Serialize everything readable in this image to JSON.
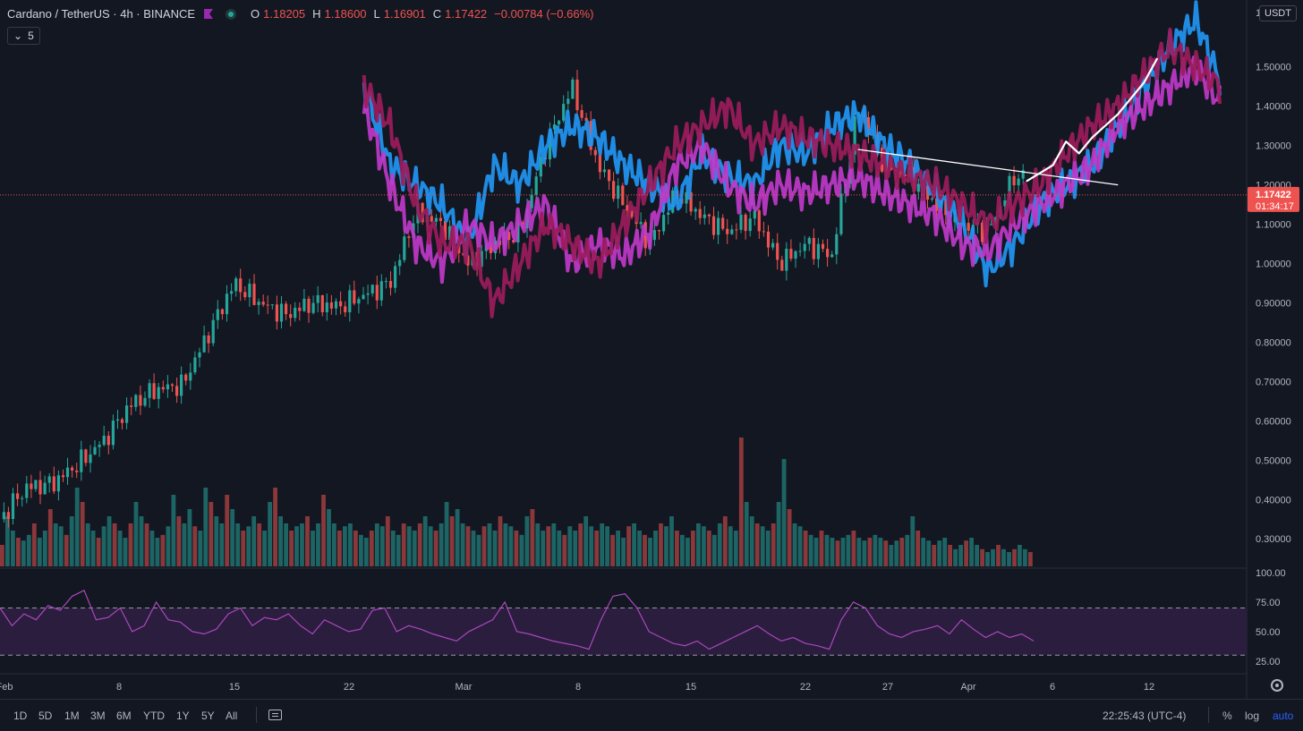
{
  "header": {
    "symbol": "Cardano / TetherUS · 4h · BINANCE",
    "ohlc": [
      {
        "k": "O",
        "v": "1.18205"
      },
      {
        "k": "H",
        "v": "1.18600"
      },
      {
        "k": "L",
        "v": "1.16901"
      },
      {
        "k": "C",
        "v": "1.17422"
      }
    ],
    "change": "−0.00784 (−0.66%)",
    "studies_count": "5",
    "currency": "USDT"
  },
  "colors": {
    "background": "#131722",
    "up": "#26a69a",
    "down": "#ef5350",
    "overlay_blue": "#2196f3",
    "overlay_magenta": "#c039c9",
    "overlay_crimson": "#9c1c5c",
    "rsi_line": "#ab47bc",
    "rsi_band": "#2a1d3e"
  },
  "chart_data": [
    {
      "type": "candlestick",
      "title": "",
      "x_tick_labels": [
        "Feb",
        "8",
        "15",
        "22",
        "Mar",
        "8",
        "15",
        "22",
        "27",
        "Apr",
        "6",
        "12"
      ],
      "y_tick_labels": [
        "1.50000",
        "1.40000",
        "1.30000",
        "1.20000",
        "1.10000",
        "1.00000",
        "0.90000",
        "0.80000",
        "0.70000",
        "0.60000",
        "0.50000",
        "0.40000",
        "0.30000"
      ],
      "y_top_label": "1",
      "ylim": [
        0.23,
        1.67
      ],
      "last_price": {
        "value": 1.17422,
        "label": "1.17422",
        "countdown": "01:34:17"
      },
      "price_series": {
        "name": "ADA/USDT",
        "x": [
          0,
          2,
          4,
          6,
          8,
          10,
          12,
          14,
          16,
          18,
          20,
          22,
          24,
          26,
          28,
          30,
          32,
          34,
          36,
          38,
          40,
          42,
          44,
          46,
          48,
          50,
          52,
          54,
          56,
          58,
          60,
          62,
          64,
          66,
          68,
          70,
          72,
          74,
          76,
          78
        ],
        "close": [
          0.35,
          0.43,
          0.44,
          0.49,
          0.55,
          0.64,
          0.68,
          0.69,
          0.82,
          0.95,
          0.9,
          0.87,
          0.9,
          0.89,
          0.92,
          0.95,
          1.13,
          1.1,
          1.0,
          1.05,
          1.08,
          1.3,
          1.45,
          1.25,
          1.15,
          1.05,
          1.18,
          1.12,
          1.08,
          1.12,
          1.0,
          1.05,
          1.02,
          1.4,
          1.25,
          1.22,
          1.15,
          1.1,
          1.08,
          1.22
        ]
      },
      "overlays": [
        {
          "x": [
            28,
            30,
            32,
            34,
            36,
            38,
            40,
            42,
            44,
            46,
            48,
            50,
            52,
            54,
            56,
            58,
            60,
            62,
            64,
            66,
            68,
            70,
            72,
            74,
            76,
            78,
            80,
            82,
            84,
            86,
            88,
            90,
            92,
            94
          ],
          "y": [
            1.45,
            1.25,
            1.2,
            1.15,
            1.05,
            1.25,
            1.2,
            1.3,
            1.35,
            1.32,
            1.25,
            1.2,
            1.15,
            1.28,
            1.22,
            1.2,
            1.3,
            1.28,
            1.35,
            1.38,
            1.3,
            1.25,
            1.18,
            1.1,
            0.98,
            1.05,
            1.15,
            1.2,
            1.25,
            1.35,
            1.45,
            1.55,
            1.62,
            1.45
          ],
          "color_key": "overlay_blue"
        },
        {
          "x": [
            28,
            30,
            32,
            34,
            36,
            38,
            40,
            42,
            44,
            46,
            48,
            50,
            52,
            54,
            56,
            58,
            60,
            62,
            64,
            66,
            68,
            70,
            72,
            74,
            76,
            78,
            80,
            82,
            84,
            86,
            88,
            90,
            92,
            94
          ],
          "y": [
            1.4,
            1.2,
            1.05,
            1.0,
            1.1,
            1.05,
            1.1,
            1.15,
            1.0,
            1.05,
            1.02,
            1.08,
            1.25,
            1.3,
            1.2,
            1.15,
            1.2,
            1.18,
            1.2,
            1.22,
            1.18,
            1.15,
            1.12,
            1.05,
            1.03,
            1.1,
            1.15,
            1.2,
            1.25,
            1.35,
            1.4,
            1.45,
            1.5,
            1.4
          ],
          "color_key": "overlay_magenta"
        },
        {
          "x": [
            28,
            30,
            32,
            34,
            36,
            38,
            40,
            42,
            44,
            46,
            48,
            50,
            52,
            54,
            56,
            58,
            60,
            62,
            64,
            66,
            68,
            70,
            72,
            74,
            76,
            78,
            80,
            82,
            84,
            86,
            88,
            90,
            92,
            94
          ],
          "y": [
            1.45,
            1.35,
            1.15,
            1.05,
            1.05,
            0.9,
            1.0,
            1.1,
            1.05,
            1.0,
            1.1,
            1.2,
            1.3,
            1.35,
            1.4,
            1.3,
            1.35,
            1.32,
            1.3,
            1.28,
            1.25,
            1.22,
            1.2,
            1.15,
            1.1,
            1.15,
            1.2,
            1.28,
            1.35,
            1.4,
            1.48,
            1.55,
            1.5,
            1.45
          ],
          "color_key": "overlay_crimson"
        }
      ],
      "trendline": {
        "x": [
          66,
          86
        ],
        "y": [
          1.29,
          1.2
        ]
      },
      "projection_curve": {
        "x": [
          79,
          81,
          82,
          83,
          84,
          86,
          88,
          89
        ],
        "y": [
          1.21,
          1.25,
          1.31,
          1.28,
          1.32,
          1.38,
          1.46,
          1.52
        ]
      },
      "volume_bars": [
        0.15,
        0.35,
        0.25,
        0.2,
        0.18,
        0.22,
        0.3,
        0.2,
        0.25,
        0.4,
        0.3,
        0.28,
        0.22,
        0.35,
        0.55,
        0.45,
        0.3,
        0.25,
        0.2,
        0.28,
        0.35,
        0.3,
        0.25,
        0.2,
        0.3,
        0.45,
        0.35,
        0.3,
        0.25,
        0.2,
        0.22,
        0.28,
        0.5,
        0.35,
        0.3,
        0.4,
        0.28,
        0.25,
        0.55,
        0.45,
        0.35,
        0.3,
        0.5,
        0.4,
        0.3,
        0.25,
        0.28,
        0.35,
        0.3,
        0.25,
        0.45,
        0.55,
        0.35,
        0.3,
        0.25,
        0.28,
        0.3,
        0.35,
        0.25,
        0.3,
        0.5,
        0.4,
        0.3,
        0.25,
        0.28,
        0.3,
        0.25,
        0.22,
        0.2,
        0.25,
        0.3,
        0.28,
        0.35,
        0.25,
        0.22,
        0.3,
        0.28,
        0.25,
        0.3,
        0.35,
        0.28,
        0.25,
        0.3,
        0.45,
        0.35,
        0.4,
        0.3,
        0.28,
        0.25,
        0.22,
        0.28,
        0.3,
        0.25,
        0.35,
        0.3,
        0.28,
        0.25,
        0.22,
        0.35,
        0.4,
        0.3,
        0.25,
        0.28,
        0.3,
        0.25,
        0.22,
        0.28,
        0.25,
        0.3,
        0.35,
        0.28,
        0.25,
        0.3,
        0.28,
        0.22,
        0.25,
        0.2,
        0.28,
        0.3,
        0.25,
        0.22,
        0.2,
        0.25,
        0.3,
        0.28,
        0.35,
        0.25,
        0.22,
        0.2,
        0.25,
        0.3,
        0.28,
        0.25,
        0.22,
        0.3,
        0.35,
        0.28,
        0.25,
        0.9,
        0.45,
        0.35,
        0.3,
        0.28,
        0.25,
        0.3,
        0.45,
        0.75,
        0.4,
        0.3,
        0.28,
        0.25,
        0.22,
        0.2,
        0.25,
        0.22,
        0.2,
        0.18,
        0.2,
        0.22,
        0.25,
        0.2,
        0.18,
        0.2,
        0.22,
        0.2,
        0.18,
        0.15,
        0.18,
        0.2,
        0.22,
        0.35,
        0.25,
        0.2,
        0.18,
        0.15,
        0.18,
        0.2,
        0.15,
        0.12,
        0.15,
        0.18,
        0.2,
        0.15,
        0.12,
        0.1,
        0.12,
        0.15,
        0.12,
        0.1,
        0.12,
        0.15,
        0.12,
        0.1
      ]
    },
    {
      "type": "line",
      "title": "RSI",
      "y_tick_labels": [
        "100.00",
        "75.00",
        "50.00",
        "25.00"
      ],
      "ylim": [
        15,
        100
      ],
      "bands": [
        30,
        70
      ],
      "values": [
        70,
        55,
        65,
        60,
        72,
        68,
        80,
        85,
        60,
        62,
        70,
        50,
        55,
        75,
        60,
        58,
        50,
        48,
        52,
        65,
        70,
        55,
        62,
        60,
        65,
        55,
        48,
        60,
        55,
        50,
        52,
        68,
        70,
        50,
        55,
        52,
        48,
        45,
        42,
        50,
        55,
        60,
        75,
        50,
        48,
        45,
        42,
        40,
        38,
        35,
        60,
        80,
        82,
        70,
        50,
        45,
        40,
        38,
        42,
        35,
        40,
        45,
        50,
        55,
        48,
        42,
        45,
        40,
        38,
        35,
        60,
        75,
        70,
        55,
        48,
        45,
        50,
        52,
        55,
        48,
        60,
        52,
        45,
        50,
        45,
        48,
        42
      ]
    }
  ],
  "toolbar": {
    "timeframes": [
      "1D",
      "5D",
      "1M",
      "3M",
      "6M",
      "YTD",
      "1Y",
      "5Y",
      "All"
    ],
    "clock": "22:25:43 (UTC-4)",
    "percent": "%",
    "log": "log",
    "auto": "auto"
  }
}
